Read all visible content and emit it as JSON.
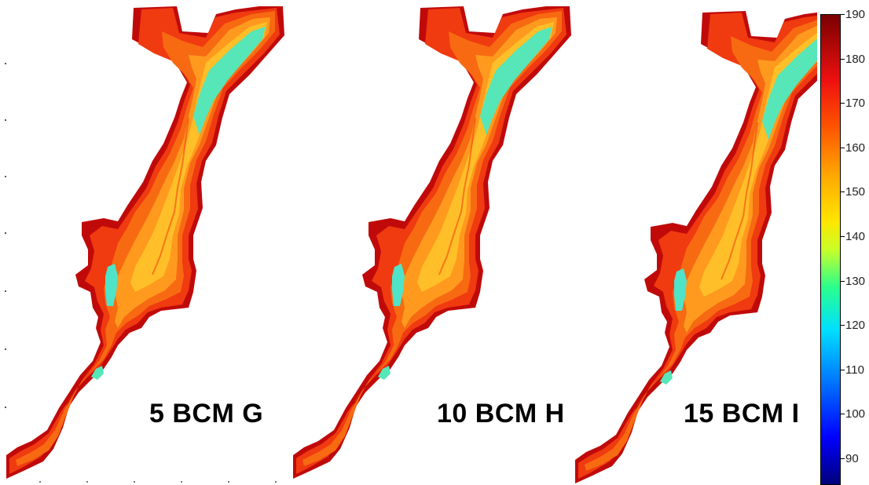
{
  "panels": [
    {
      "label": "5 BCM G"
    },
    {
      "label": "10 BCM H"
    },
    {
      "label": "15 BCM I"
    }
  ],
  "colorbar": {
    "min": 84,
    "max": 190,
    "ticks": [
      "190",
      "180",
      "170",
      "160",
      "150",
      "140",
      "130",
      "120",
      "110",
      "100",
      "90"
    ],
    "colors": {
      "low": "#00007a",
      "blue": "#0000ff",
      "cyan": "#00e0ff",
      "green": "#2aff8c",
      "yellow": "#ffe600",
      "orange": "#ffa600",
      "red": "#ee1010",
      "high": "#7a0000"
    }
  },
  "map_colors": {
    "dark_edge": "#c00a0a",
    "bank": "#f03a10",
    "slope": "#f76a12",
    "mid_slope": "#ff9a1e",
    "floor": "#ffbf28",
    "channel": "#56e6b8",
    "water": "#4fe3c8"
  }
}
